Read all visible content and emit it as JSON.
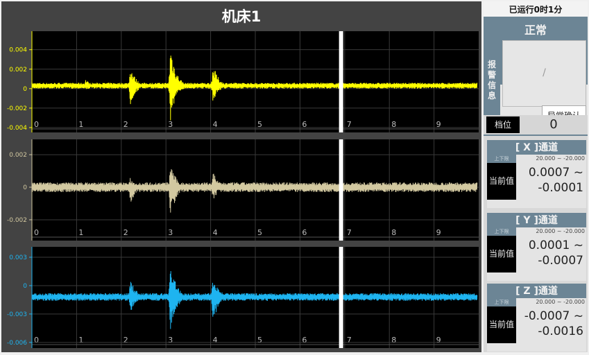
{
  "title": "机床1",
  "colors": {
    "x": "#ffff00",
    "y": "#d2c8a0",
    "z": "#1eb4f0",
    "cursor": "#ffffff",
    "panel": "#6c8595"
  },
  "cursor_time": 6.92,
  "chart_data": [
    {
      "type": "line",
      "xlim": [
        0,
        10
      ],
      "ylim": [
        -0.0045,
        0.0059
      ],
      "x_ticks": [
        "0",
        "1",
        "2",
        "3",
        "4",
        "5",
        "6",
        "7",
        "8",
        "9"
      ],
      "y_ticks": [
        "0.004",
        "0.002",
        "0",
        "-0.002",
        "-0.004"
      ],
      "y_tick_values": [
        0.004,
        0.002,
        0,
        -0.002,
        -0.004
      ],
      "grid": true,
      "color": "#ffff00",
      "baseline": 0.0003,
      "noise": 0.0003,
      "bursts": [
        {
          "t": 1.2,
          "max": 0.001,
          "min": -0.0002
        },
        {
          "t": 2.2,
          "max": 0.0025,
          "min": -0.0018
        },
        {
          "t": 3.1,
          "max": 0.0048,
          "min": -0.0035
        },
        {
          "t": 4.05,
          "max": 0.0027,
          "min": -0.0015
        }
      ]
    },
    {
      "type": "line",
      "xlim": [
        0,
        10
      ],
      "ylim": [
        -0.00328,
        0.00294
      ],
      "x_ticks": [
        "0",
        "1",
        "2",
        "3",
        "4",
        "5",
        "6",
        "7",
        "8",
        "9"
      ],
      "y_ticks": [
        "0.002",
        "0",
        "-0.002"
      ],
      "y_tick_values": [
        0.002,
        0,
        -0.002
      ],
      "grid": true,
      "color": "#d2c8a0",
      "baseline": 0,
      "noise": 0.0003,
      "bursts": [
        {
          "t": 2.2,
          "max": 0.0006,
          "min": -0.0011
        },
        {
          "t": 3.1,
          "max": 0.0017,
          "min": -0.0021
        },
        {
          "t": 4.05,
          "max": 0.0011,
          "min": -0.0009
        }
      ]
    },
    {
      "type": "line",
      "xlim": [
        0,
        10
      ],
      "ylim": [
        -0.0066,
        0.0041
      ],
      "x_ticks": [
        "0",
        "1",
        "2",
        "3",
        "4",
        "5",
        "6",
        "7",
        "8",
        "9"
      ],
      "y_ticks": [
        "0.003",
        "0",
        "-0.003",
        "-0.006"
      ],
      "y_tick_values": [
        0.003,
        0,
        -0.003,
        -0.006
      ],
      "grid": true,
      "color": "#1eb4f0",
      "baseline": -0.0012,
      "noise": 0.0004,
      "bursts": [
        {
          "t": 2.2,
          "max": 0.001,
          "min": -0.003
        },
        {
          "t": 3.1,
          "max": 0.003,
          "min": -0.0056
        },
        {
          "t": 4.05,
          "max": 0.0017,
          "min": -0.0044
        }
      ]
    }
  ],
  "side": {
    "runtime": "已运行0时1分",
    "status": "正常",
    "alarm_label": "报警信息",
    "alarm_value": "/",
    "ack_button": "异常确认",
    "gear_label": "档位",
    "gear_value": "0",
    "channels": [
      {
        "title": "[ X ]通道",
        "limit_label": "上下限",
        "limit": "20.000 ~ -20.000",
        "current_label": "当前值",
        "current_hi": "0.0007 ~",
        "current_lo": "-0.0001"
      },
      {
        "title": "[ Y ]通道",
        "limit_label": "上下限",
        "limit": "20.000 ~ -20.000",
        "current_label": "当前值",
        "current_hi": "0.0001 ~",
        "current_lo": "-0.0007"
      },
      {
        "title": "[ Z ]通道",
        "limit_label": "上下限",
        "limit": "20.000 ~ -20.000",
        "current_label": "当前值",
        "current_hi": "-0.0007 ~",
        "current_lo": "-0.0016"
      }
    ]
  }
}
